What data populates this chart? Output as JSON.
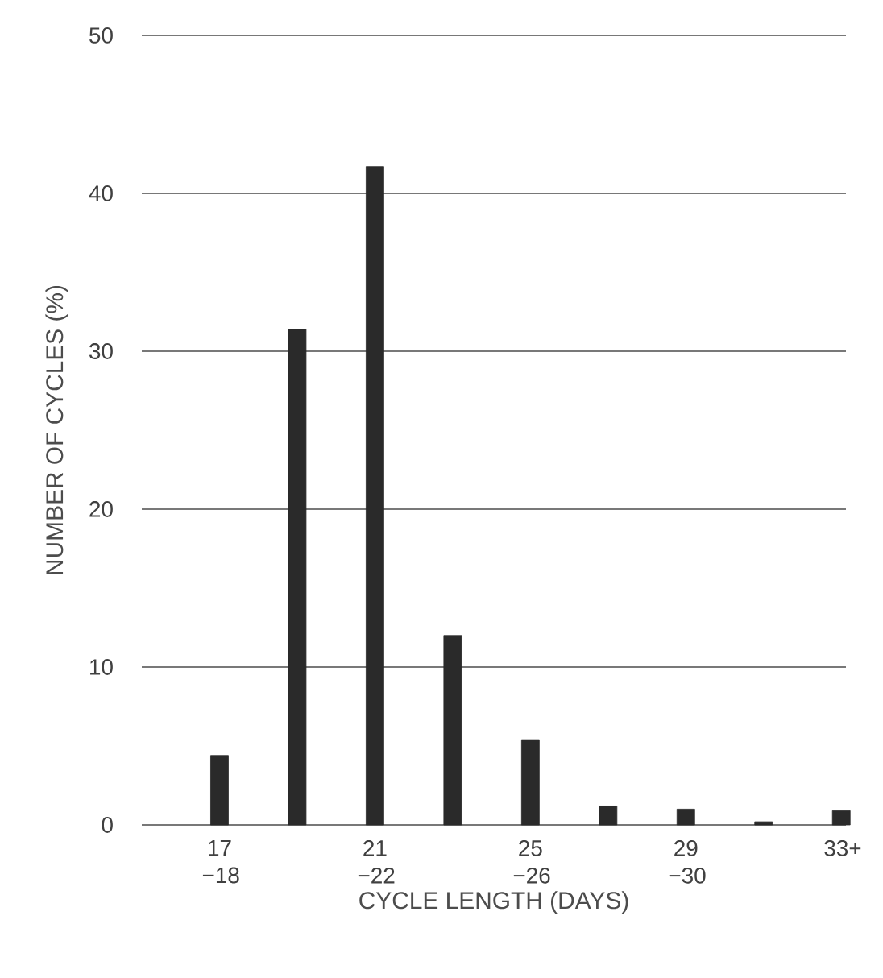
{
  "chart_data": {
    "type": "bar",
    "xlabel": "CYCLE LENGTH (DAYS)",
    "ylabel": "NUMBER OF CYCLES (%)",
    "categories": [
      "17 −18",
      null,
      "21 −22",
      null,
      "25 −26",
      null,
      "29 −30",
      null,
      "33+"
    ],
    "values": [
      4.4,
      31.4,
      41.7,
      12.0,
      5.4,
      1.2,
      1.0,
      0.2,
      0.9
    ],
    "color": "#2a2a2a",
    "ylim": [
      0,
      50
    ],
    "yticks": [
      0,
      10,
      20,
      30,
      40,
      50
    ],
    "grid": "y"
  }
}
